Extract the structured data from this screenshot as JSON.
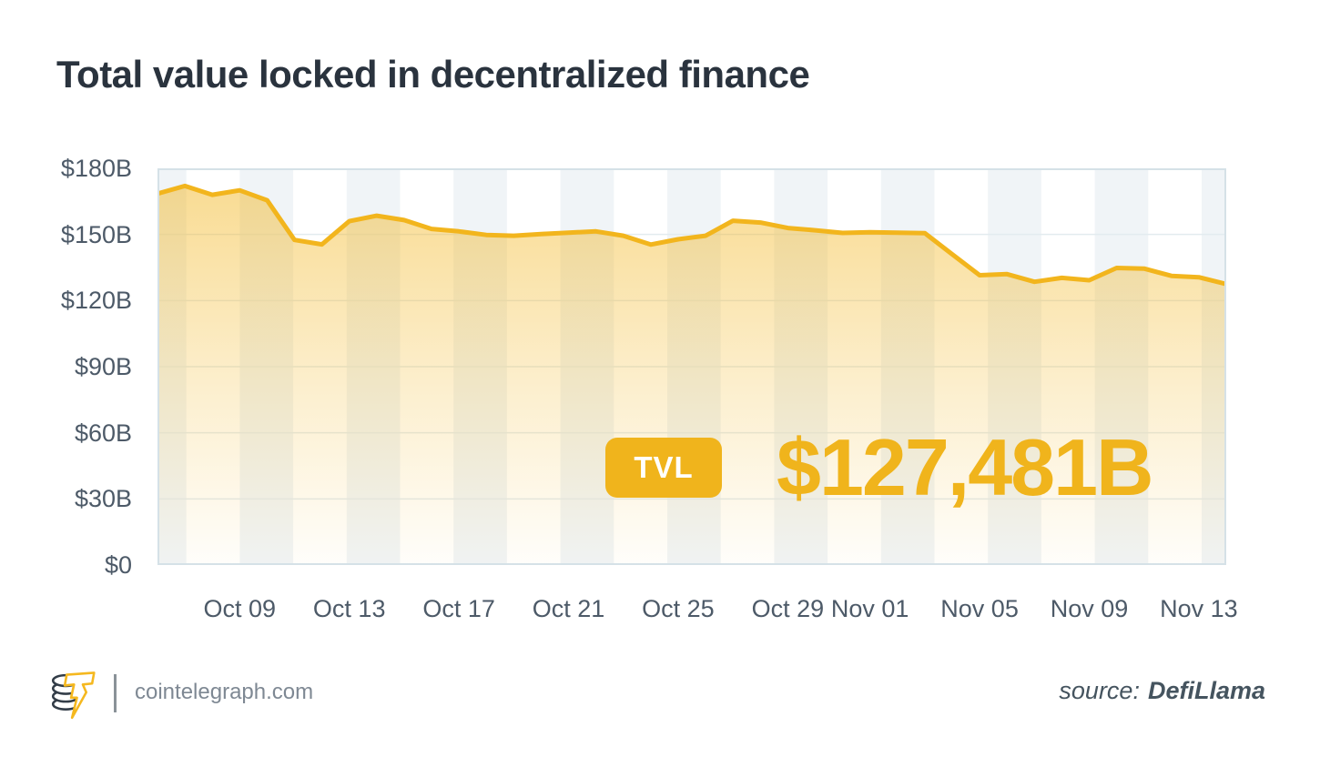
{
  "title": "Total value locked in decentralized finance",
  "chart_data": {
    "type": "area",
    "title": "Total value locked in decentralized finance",
    "x": [
      "Oct 06",
      "Oct 07",
      "Oct 08",
      "Oct 09",
      "Oct 10",
      "Oct 11",
      "Oct 12",
      "Oct 13",
      "Oct 14",
      "Oct 15",
      "Oct 16",
      "Oct 17",
      "Oct 18",
      "Oct 19",
      "Oct 20",
      "Oct 21",
      "Oct 22",
      "Oct 23",
      "Oct 24",
      "Oct 25",
      "Oct 26",
      "Oct 27",
      "Oct 28",
      "Oct 29",
      "Oct 30",
      "Oct 31",
      "Nov 01",
      "Nov 02",
      "Nov 03",
      "Nov 04",
      "Nov 05",
      "Nov 06",
      "Nov 07",
      "Nov 08",
      "Nov 09",
      "Nov 10",
      "Nov 11",
      "Nov 12",
      "Nov 13",
      "Nov 14"
    ],
    "values": [
      168.5,
      172,
      168,
      170,
      165.5,
      147.5,
      145.5,
      156,
      158.5,
      156.5,
      152.5,
      151.4,
      149.8,
      149.4,
      150.2,
      150.8,
      151.4,
      149.4,
      145.4,
      147.8,
      149.4,
      156.2,
      155.4,
      152.9,
      151.9,
      150.7,
      151,
      150.8,
      150.6,
      141,
      131.5,
      132,
      128.5,
      130.3,
      129.2,
      134.8,
      134.5,
      131.2,
      130.6,
      127.5
    ],
    "series_name": "TVL",
    "last_value_label": "$127,481B",
    "x_tick_labels": [
      "Oct 09",
      "Oct 13",
      "Oct 17",
      "Oct 21",
      "Oct 25",
      "Oct 29",
      "Nov 01",
      "Nov 05",
      "Nov 09",
      "Nov 13"
    ],
    "x_tick_indices": [
      3,
      7,
      11,
      15,
      19,
      23,
      26,
      30,
      34,
      38
    ],
    "y_ticks": [
      "$180B",
      "$150B",
      "$120B",
      "$90B",
      "$60B",
      "$30B",
      "$0"
    ],
    "y_tick_values": [
      180,
      150,
      120,
      90,
      60,
      30,
      0
    ],
    "ylim": [
      0,
      180
    ],
    "grid": "horizontal",
    "legend": "none",
    "background_stripes": true
  },
  "overlay": {
    "badge_label": "TVL",
    "value_text": "$127,481B"
  },
  "footer": {
    "site": "cointelegraph.com",
    "source_prefix": "source:",
    "source_name": "DefiLlama",
    "logo": "cointelegraph-coin-bolt"
  },
  "colors": {
    "accent": "#F0B41C",
    "line": "#F2B51D",
    "title_text": "#2A333E",
    "axis_text": "#4D5A68",
    "stripe": "#F0F4F7",
    "plot_border": "#D5E1E7",
    "gridline": "#E3EBEF",
    "footer_text": "#7E8893",
    "source_text": "#45545F",
    "logo_dark": "#333D48",
    "logo_yellow": "#F5B81F"
  }
}
